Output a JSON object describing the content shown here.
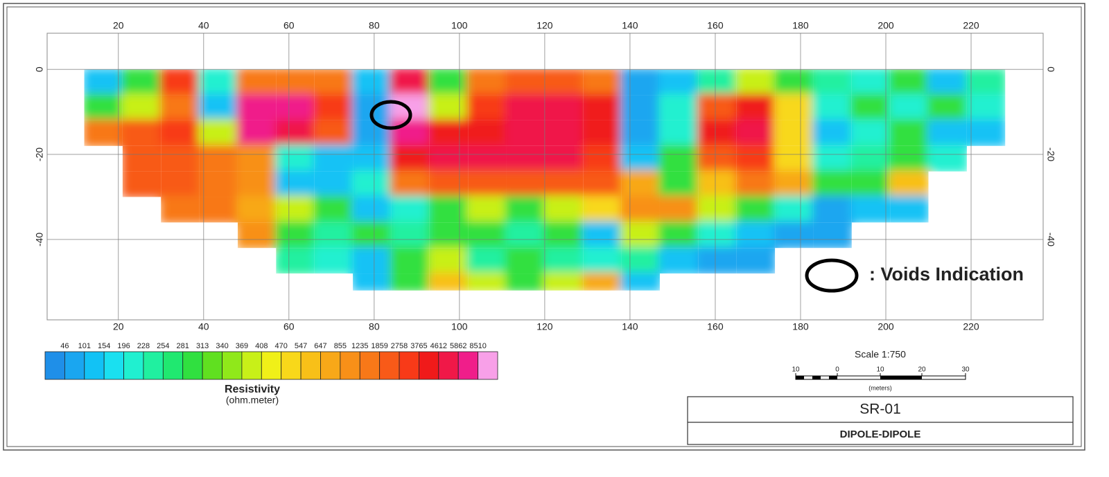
{
  "chart_data": {
    "type": "heatmap",
    "xlim": [
      3.3,
      236.9
    ],
    "ylim": [
      -58.9,
      8.5
    ],
    "xticks": [
      20,
      40,
      60,
      80,
      100,
      120,
      140,
      160,
      180,
      200,
      220
    ],
    "yticks": [
      0,
      -20,
      -40
    ],
    "grid": true,
    "x_bins": [
      12,
      21,
      30,
      39,
      48,
      57,
      66,
      75,
      84,
      93,
      102,
      111,
      120,
      129,
      138,
      147,
      156,
      165,
      174,
      183,
      192,
      201,
      210,
      219,
      228
    ],
    "y_bins": [
      0,
      -6,
      -12,
      -18,
      -24,
      -30,
      -36,
      -42,
      -48,
      -52
    ],
    "values": [
      [
        150,
        300,
        3000,
        200,
        1500,
        1500,
        1500,
        150,
        5000,
        300,
        1500,
        2000,
        2000,
        1500,
        100,
        150,
        250,
        400,
        300,
        250,
        200,
        300,
        150,
        250
      ],
      [
        300,
        400,
        1500,
        150,
        6000,
        6000,
        3000,
        100,
        9000,
        400,
        3500,
        5000,
        5000,
        4000,
        80,
        200,
        2500,
        4000,
        500,
        200,
        300,
        200,
        300,
        200
      ],
      [
        1500,
        2000,
        3000,
        400,
        6000,
        5000,
        2500,
        100,
        8000,
        4000,
        4000,
        5000,
        5000,
        4000,
        80,
        200,
        4000,
        5000,
        500,
        150,
        200,
        300,
        150,
        150
      ],
      [
        null,
        2000,
        2500,
        1500,
        1200,
        200,
        150,
        150,
        4000,
        5000,
        5000,
        5000,
        5000,
        3500,
        150,
        300,
        2500,
        3000,
        500,
        200,
        250,
        300,
        200,
        null
      ],
      [
        null,
        2000,
        2000,
        1800,
        1000,
        150,
        150,
        200,
        1500,
        2000,
        2500,
        2500,
        2500,
        2000,
        800,
        300,
        600,
        1500,
        800,
        300,
        300,
        600,
        null,
        null
      ],
      [
        null,
        null,
        1500,
        1500,
        800,
        400,
        300,
        150,
        200,
        300,
        400,
        300,
        400,
        500,
        1000,
        1200,
        400,
        300,
        200,
        100,
        150,
        150,
        null,
        null
      ],
      [
        null,
        null,
        null,
        null,
        1200,
        300,
        250,
        300,
        250,
        300,
        300,
        250,
        300,
        150,
        400,
        300,
        200,
        150,
        100,
        100,
        null,
        null,
        null,
        null
      ],
      [
        null,
        null,
        null,
        null,
        null,
        250,
        200,
        150,
        300,
        400,
        250,
        300,
        250,
        200,
        250,
        120,
        100,
        100,
        null,
        null,
        null,
        null,
        null,
        null
      ],
      [
        null,
        null,
        null,
        null,
        null,
        null,
        null,
        150,
        300,
        600,
        400,
        300,
        400,
        700,
        150,
        null,
        null,
        null,
        null,
        null,
        null,
        null,
        null,
        null
      ]
    ],
    "colorbar": {
      "levels": [
        46,
        101,
        154,
        196,
        228,
        254,
        281,
        313,
        340,
        369,
        408,
        470,
        547,
        647,
        855,
        1235,
        1859,
        2758,
        3765,
        4612,
        5862,
        8510
      ],
      "colors": [
        "#1f8fe8",
        "#1aa6f0",
        "#12c2f5",
        "#1ae0f0",
        "#20f0d0",
        "#20f0a0",
        "#20e870",
        "#30e040",
        "#60e020",
        "#90e81a",
        "#c8f018",
        "#f0f018",
        "#f8d81a",
        "#f8c018",
        "#f8a818",
        "#f89018",
        "#f87818",
        "#f85a18",
        "#f83a18",
        "#f01a1a",
        "#f01848",
        "#f01e8a",
        "#f8a0e8"
      ],
      "title": "Resistivity",
      "unit": "(ohm.meter)"
    },
    "annotation": ": Voids Indication",
    "scale_bar": {
      "title": "Scale 1:750",
      "labels": [
        "10",
        "0",
        "10",
        "20",
        "30"
      ],
      "unit": "(meters)"
    },
    "title_block": {
      "id": "SR-01",
      "method": "DIPOLE-DIPOLE"
    }
  }
}
